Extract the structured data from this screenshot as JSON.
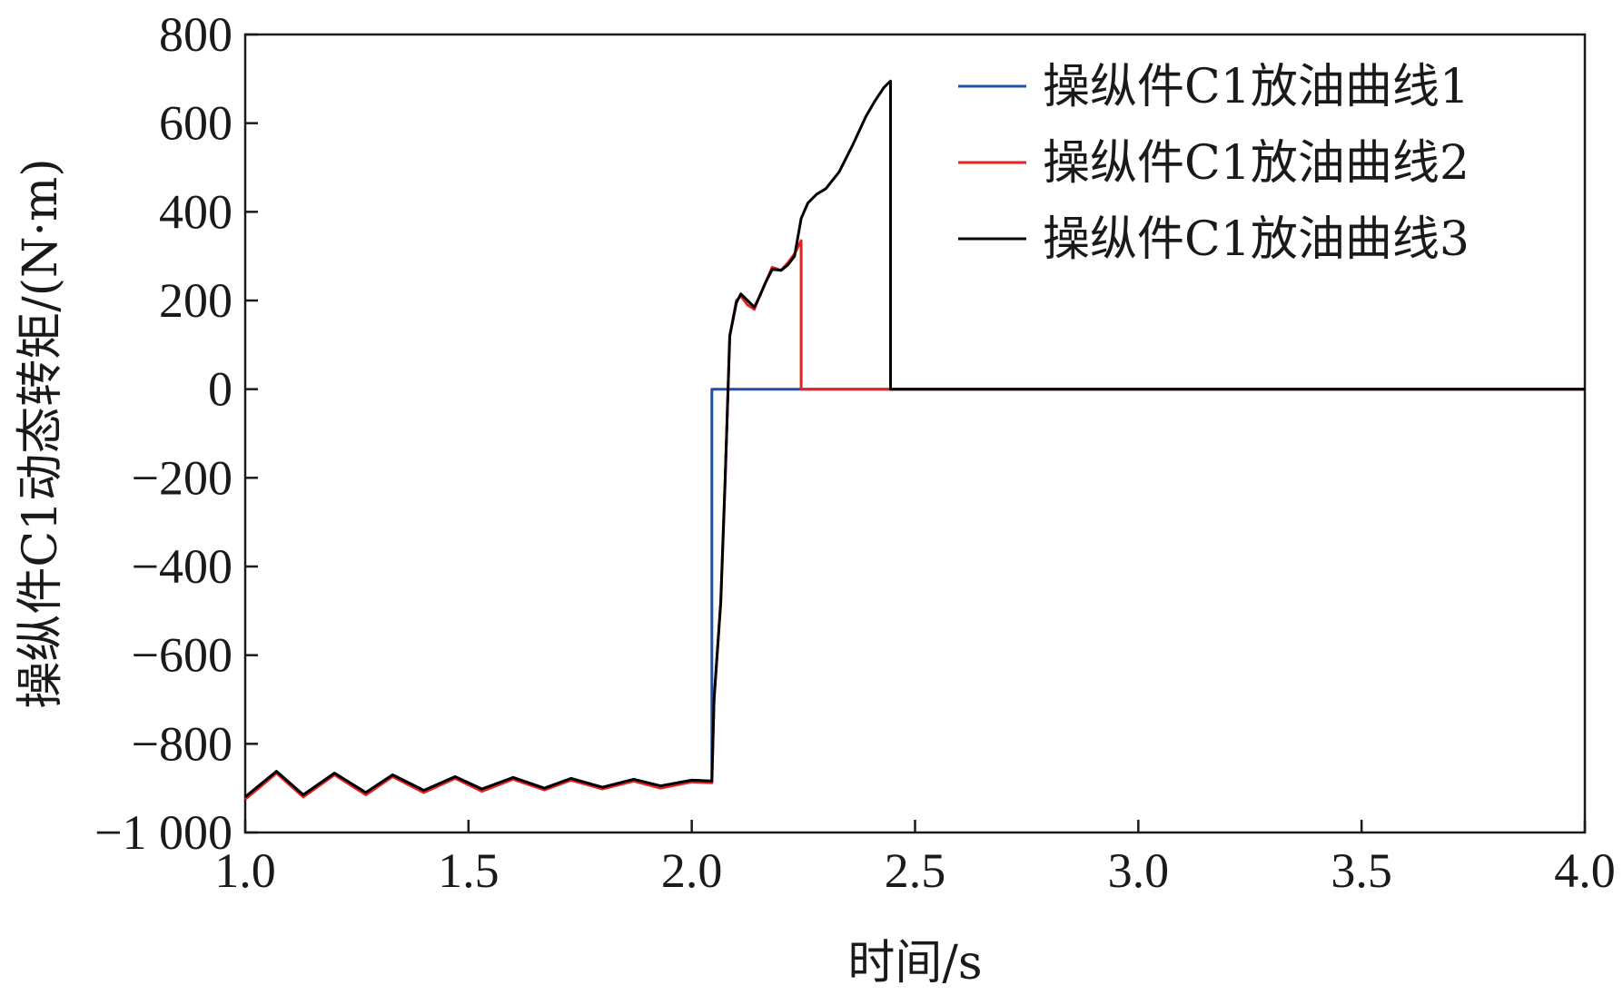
{
  "chart_data": {
    "type": "line",
    "xlabel": "时间/s",
    "ylabel": "操纵件C1动态转矩/(N·m)",
    "xlim": [
      1.0,
      4.0
    ],
    "ylim": [
      -1000,
      800
    ],
    "xticks": [
      1.0,
      1.5,
      2.0,
      2.5,
      3.0,
      3.5,
      4.0
    ],
    "xtick_labels": [
      "1.0",
      "1.5",
      "2.0",
      "2.5",
      "3.0",
      "3.5",
      "4.0"
    ],
    "yticks": [
      -1000,
      -800,
      -600,
      -400,
      -200,
      0,
      200,
      400,
      600,
      800
    ],
    "ytick_labels": [
      "−1 000",
      "−800",
      "−600",
      "−400",
      "−200",
      "0",
      "200",
      "400",
      "600",
      "800"
    ],
    "grid": false,
    "legend_position": "top-right",
    "series": [
      {
        "name": "操纵件C1放油曲线1",
        "color": "#1f4fa8",
        "x": [
          1.0,
          1.03,
          1.07,
          1.13,
          1.2,
          1.27,
          1.33,
          1.4,
          1.47,
          1.53,
          1.6,
          1.67,
          1.73,
          1.8,
          1.87,
          1.93,
          2.0,
          2.045,
          2.045,
          2.05,
          4.0
        ],
        "y": [
          -920,
          -895,
          -862,
          -915,
          -866,
          -910,
          -870,
          -905,
          -874,
          -902,
          -876,
          -900,
          -878,
          -898,
          -880,
          -895,
          -882,
          -884,
          0,
          0,
          0
        ]
      },
      {
        "name": "操纵件C1放油曲线2",
        "color": "#e8231f",
        "x": [
          1.0,
          1.03,
          1.07,
          1.13,
          1.2,
          1.27,
          1.33,
          1.4,
          1.47,
          1.53,
          1.6,
          1.67,
          1.73,
          1.8,
          1.87,
          1.93,
          2.0,
          2.045,
          2.05,
          2.065,
          2.075,
          2.085,
          2.1,
          2.11,
          2.125,
          2.14,
          2.15,
          2.165,
          2.18,
          2.2,
          2.215,
          2.23,
          2.245,
          2.245,
          2.3,
          2.44,
          2.45,
          4.0
        ],
        "y": [
          -925,
          -900,
          -866,
          -920,
          -870,
          -915,
          -874,
          -910,
          -878,
          -907,
          -880,
          -904,
          -882,
          -902,
          -884,
          -900,
          -886,
          -888,
          -700,
          -480,
          -200,
          120,
          200,
          210,
          190,
          180,
          205,
          240,
          275,
          268,
          285,
          305,
          335,
          0,
          0,
          0,
          0,
          0
        ]
      },
      {
        "name": "操纵件C1放油曲线3",
        "color": "#000000",
        "x": [
          1.0,
          1.03,
          1.07,
          1.13,
          1.2,
          1.27,
          1.33,
          1.4,
          1.47,
          1.53,
          1.6,
          1.67,
          1.73,
          1.8,
          1.87,
          1.93,
          2.0,
          2.045,
          2.05,
          2.065,
          2.075,
          2.085,
          2.1,
          2.11,
          2.125,
          2.14,
          2.15,
          2.165,
          2.18,
          2.2,
          2.215,
          2.23,
          2.245,
          2.26,
          2.28,
          2.3,
          2.33,
          2.36,
          2.39,
          2.41,
          2.43,
          2.44,
          2.445,
          2.445,
          2.45,
          4.0
        ],
        "y": [
          -920,
          -895,
          -862,
          -915,
          -866,
          -910,
          -870,
          -905,
          -874,
          -902,
          -876,
          -900,
          -878,
          -898,
          -880,
          -895,
          -882,
          -884,
          -700,
          -480,
          -200,
          120,
          195,
          215,
          200,
          185,
          205,
          240,
          270,
          268,
          280,
          300,
          385,
          420,
          440,
          452,
          490,
          550,
          615,
          650,
          680,
          690,
          695,
          0,
          0,
          0
        ]
      }
    ]
  }
}
